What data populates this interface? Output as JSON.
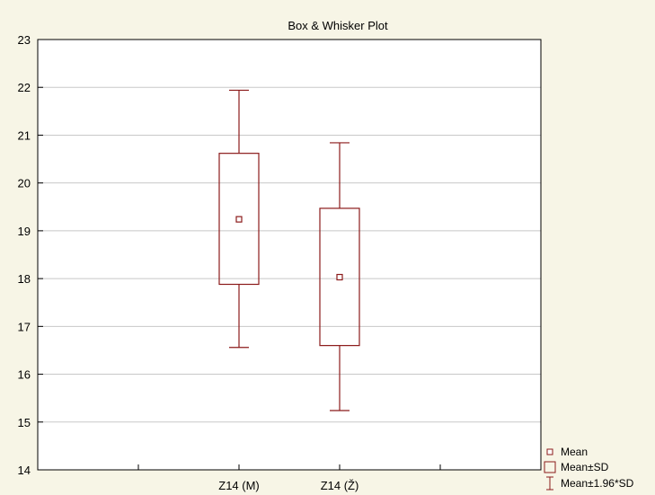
{
  "chart_data": {
    "type": "box",
    "title": "Box & Whisker Plot",
    "xlabel": "",
    "ylabel": "",
    "categories": [
      "Z14 (M)",
      "Z14 (Ž)"
    ],
    "series": [
      {
        "category": "Z14 (M)",
        "mean": 19.24,
        "mean_minus_sd": 17.88,
        "mean_plus_sd": 20.62,
        "mean_minus_1_96sd": 16.56,
        "mean_plus_1_96sd": 21.94
      },
      {
        "category": "Z14 (Ž)",
        "mean": 18.03,
        "mean_minus_sd": 16.6,
        "mean_plus_sd": 19.47,
        "mean_minus_1_96sd": 15.24,
        "mean_plus_1_96sd": 20.84
      }
    ],
    "ylim": [
      14,
      23
    ],
    "y_ticks": [
      14,
      15,
      16,
      17,
      18,
      19,
      20,
      21,
      22,
      23
    ],
    "grid": true,
    "legend": {
      "placement": "bottom-right",
      "entries": [
        "Mean",
        "Mean±SD",
        "Mean±1.96*SD"
      ]
    },
    "colors": {
      "series": "#8b1a1a",
      "grid": "#c8c8c8",
      "plot_background": "#ffffff",
      "page_background": "#f7f5e6",
      "axis": "#000000"
    }
  }
}
